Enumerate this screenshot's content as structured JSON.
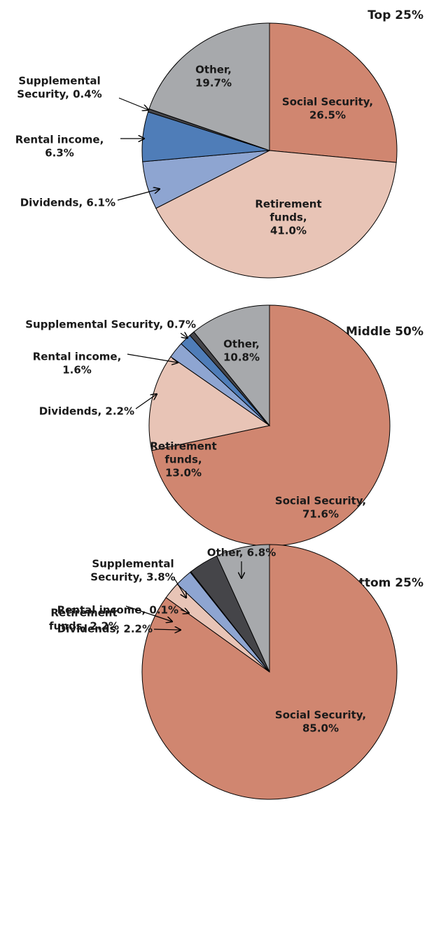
{
  "chart_data": [
    {
      "type": "pie",
      "title": "Top 25%",
      "labels": [
        [
          "Social Security,",
          "26.5%"
        ],
        [
          "Retirement",
          "funds,",
          "41.0%"
        ],
        [
          "Dividends, 6.1%"
        ],
        [
          "Rental income,",
          "6.3%"
        ],
        [
          "Supplemental",
          "Security, 0.4%"
        ],
        [
          "Other,",
          "19.7%"
        ]
      ],
      "values": [
        26.5,
        41.0,
        6.1,
        6.3,
        0.4,
        19.7
      ],
      "colors": [
        "#d08670",
        "#e8c4b6",
        "#8ea5d1",
        "#4f7db8",
        "#454549",
        "#a7a9ac"
      ]
    },
    {
      "type": "pie",
      "title": "Middle 50%",
      "labels": [
        [
          "Social Security,",
          "71.6%"
        ],
        [
          "Retirement",
          "funds,",
          "13.0%"
        ],
        [
          "Dividends, 2.2%"
        ],
        [
          "Rental income,",
          "1.6%"
        ],
        [
          "Supplemental Security, 0.7%"
        ],
        [
          "Other,",
          "10.8%"
        ]
      ],
      "values": [
        71.6,
        13.0,
        2.2,
        1.6,
        0.7,
        10.8
      ],
      "colors": [
        "#d08670",
        "#e8c4b6",
        "#8ea5d1",
        "#4f7db8",
        "#454549",
        "#a7a9ac"
      ]
    },
    {
      "type": "pie",
      "title": "Bottom 25%",
      "labels": [
        [
          "Social Security,",
          "85.0%"
        ],
        [
          "Retirement",
          "funds, 2.2%"
        ],
        [
          "Dividends, 2.2%"
        ],
        [
          "Rental income, 0.1%"
        ],
        [
          "Supplemental",
          "Security, 3.8%"
        ],
        [
          "Other, 6.8%"
        ]
      ],
      "values": [
        85.0,
        2.2,
        2.2,
        0.1,
        3.8,
        6.8
      ],
      "colors": [
        "#d08670",
        "#e8c4b6",
        "#8ea5d1",
        "#4f7db8",
        "#454549",
        "#a7a9ac"
      ]
    }
  ]
}
